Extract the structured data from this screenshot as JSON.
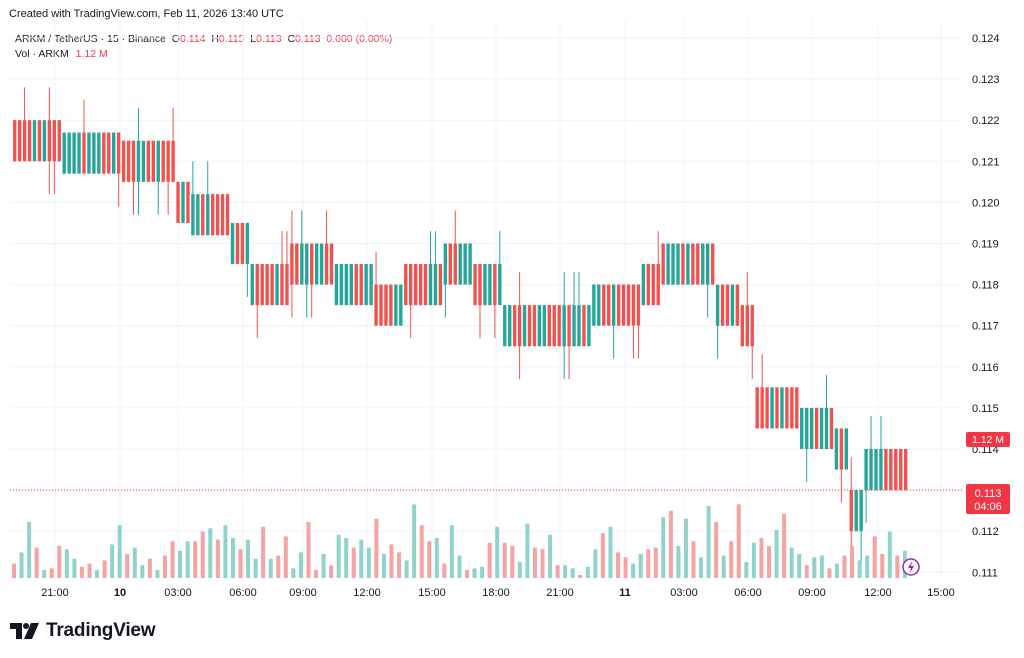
{
  "header": {
    "created_text": "Created with TradingView.com, Feb 11, 2026 13:40 UTC"
  },
  "legend": {
    "symbol": "ARKM / TetherUS · 15 · Binance",
    "open_label": "O",
    "open": "0.114",
    "high_label": "H",
    "high": "0.115",
    "low_label": "L",
    "low": "0.113",
    "close_label": "C",
    "close": "0.113",
    "change": "0.000 (0.00%)",
    "vol_label": "Vol · ARKM",
    "vol_value": "1.12 M"
  },
  "colors": {
    "up": "#26a69a",
    "down": "#ef5350",
    "up_volume": "#8fd3cb",
    "down_volume": "#f5a3a3",
    "price_line": "#f23645",
    "grid": "#f0f3fa",
    "text": "#131722"
  },
  "price_tag": {
    "price": "0.113",
    "countdown": "04:06"
  },
  "volume_tag": "1.12 M",
  "brand": "TradingView",
  "chart_data": {
    "type": "candlestick",
    "title": "ARKM / TetherUS · 15 · Binance",
    "interval": "15",
    "y_axis": {
      "ylim": [
        0.1108,
        0.1244
      ],
      "ticks": [
        "0.124",
        "0.123",
        "0.122",
        "0.121",
        "0.120",
        "0.119",
        "0.118",
        "0.117",
        "0.116",
        "0.115",
        "0.114",
        "0.112",
        "0.111"
      ]
    },
    "x_axis": {
      "labels": [
        "21:00",
        "10",
        "03:00",
        "06:00",
        "09:00",
        "12:00",
        "15:00",
        "18:00",
        "21:00",
        "11",
        "03:00",
        "06:00",
        "09:00",
        "12:00",
        "15:00"
      ],
      "bold_labels": [
        "10",
        "11"
      ]
    },
    "current_price": 0.113,
    "volume_series": [
      [
        0.9,
        0.3
      ],
      [
        1.6,
        0.25
      ],
      [
        3.5,
        0.3
      ],
      [
        1.9,
        0.25
      ],
      [
        0.5,
        0.2
      ],
      [
        0.6,
        0.15
      ],
      [
        2,
        0.2
      ],
      [
        1.8,
        0.12
      ],
      [
        1.2,
        0.2
      ],
      [
        0.7,
        0.3
      ],
      [
        0.9,
        0.1
      ],
      [
        0.5,
        0.05
      ],
      [
        1.1,
        0.18
      ],
      [
        2.1,
        0.25
      ],
      [
        3.3,
        0.25
      ],
      [
        1.5,
        0.1
      ],
      [
        1.9,
        0.2
      ],
      [
        0.8,
        0.25
      ],
      [
        1.2,
        0.18
      ],
      [
        0.5,
        0.18
      ],
      [
        1.4,
        0.3
      ],
      [
        2.3,
        0.26
      ],
      [
        1.7,
        0.1
      ],
      [
        2.3,
        0.2
      ],
      [
        2.3,
        0.3
      ],
      [
        2.9,
        0.3
      ],
      [
        3.1,
        0.3
      ],
      [
        2.4,
        0.12
      ],
      [
        3.3,
        0.23
      ],
      [
        2.5,
        0.15
      ],
      [
        1.8,
        0.2
      ],
      [
        2.4,
        0.16
      ],
      [
        1.2,
        0.2
      ],
      [
        3.2,
        0.2
      ],
      [
        1.2,
        0.2
      ],
      [
        1.4,
        0.05
      ],
      [
        2.6,
        0.3
      ],
      [
        0.6,
        0.3
      ],
      [
        1.6,
        0.2
      ],
      [
        3.5,
        0.2
      ],
      [
        0.5,
        0.3
      ],
      [
        1.5,
        0.3
      ],
      [
        0.8,
        0.2
      ],
      [
        2.7,
        0.3
      ],
      [
        2.5,
        0.3
      ],
      [
        1.9,
        0.2
      ],
      [
        2.4,
        0.3
      ],
      [
        1.9,
        0.18
      ],
      [
        3.7,
        0.23
      ],
      [
        1.5,
        0.3
      ],
      [
        2.1,
        0.3
      ],
      [
        1.6,
        0.3
      ],
      [
        1.1,
        0.3
      ],
      [
        4.6,
        0.2
      ],
      [
        3.3,
        0.3
      ],
      [
        2.3,
        0.2
      ],
      [
        2.5,
        0.3
      ],
      [
        0.9,
        0.2
      ],
      [
        3.3,
        0.2
      ],
      [
        1.4,
        0.28
      ],
      [
        0.5,
        0.16
      ],
      [
        0.6,
        0.28
      ],
      [
        0.7,
        0.1
      ],
      [
        2.2,
        0.13
      ],
      [
        3.2,
        0.3
      ],
      [
        2.2,
        0.2
      ],
      [
        2.0,
        0.1
      ],
      [
        1.0,
        0.12
      ],
      [
        3.4,
        0.2
      ],
      [
        1.9,
        0.2
      ],
      [
        1.8,
        0.3
      ],
      [
        2.7,
        0.25
      ],
      [
        0.8,
        0.2
      ],
      [
        0.8,
        0.3
      ],
      [
        0.6,
        0.2
      ],
      [
        0.2,
        0.25
      ],
      [
        0.7,
        0.25
      ],
      [
        1.8,
        0.3
      ],
      [
        2.8,
        0.3
      ],
      [
        3.2,
        0.1
      ],
      [
        1.6,
        0.3
      ],
      [
        1.3,
        0.16
      ],
      [
        0.9,
        0.2
      ],
      [
        1.5,
        0.26
      ],
      [
        1.8,
        0.12
      ],
      [
        1.9,
        0.3
      ],
      [
        3.8,
        0.3
      ],
      [
        4.2,
        0.2
      ],
      [
        2.0,
        0.3
      ],
      [
        3.7,
        0.3
      ],
      [
        2.3,
        0.25
      ],
      [
        1.3,
        0.28
      ],
      [
        4.5,
        0.28
      ],
      [
        3.5,
        0.28
      ],
      [
        1.4,
        0.22
      ],
      [
        2.3,
        0.2
      ],
      [
        4.6,
        0.2
      ],
      [
        1.0,
        0.26
      ],
      [
        2.2,
        0.3
      ],
      [
        2.5,
        0.25
      ],
      [
        2.0,
        0.16
      ],
      [
        3.0,
        0.3
      ],
      [
        4.0,
        0.15
      ],
      [
        1.9,
        0.28
      ],
      [
        1.5,
        0.26
      ],
      [
        0.8,
        0.28
      ],
      [
        1.3,
        0.3
      ],
      [
        1.4,
        0.3
      ],
      [
        0.6,
        0.25
      ],
      [
        0.9,
        0.18
      ],
      [
        1.4,
        0.3
      ],
      [
        2.0,
        0.3
      ],
      [
        1.1,
        0.26
      ],
      [
        1.4,
        0.25
      ],
      [
        2.6,
        0.26
      ],
      [
        1.5,
        0.2
      ],
      [
        2.9,
        0.3
      ],
      [
        1.4,
        0.28
      ],
      [
        1.7,
        0.3
      ]
    ]
  }
}
